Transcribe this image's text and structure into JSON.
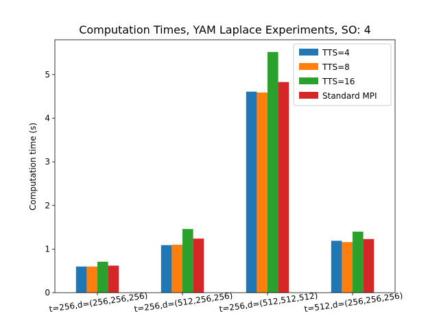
{
  "chart_data": {
    "type": "bar",
    "title": "Computation Times, YAM Laplace Experiments, SO: 4",
    "xlabel": "",
    "ylabel": "Computation time (s)",
    "ylim": [
      0,
      5.8
    ],
    "yticks": [
      0,
      1,
      2,
      3,
      4,
      5
    ],
    "grid": false,
    "legend_position": "top-right",
    "categories": [
      "t=256,d=(256,256,256)",
      "t=256,d=(512,256,256)",
      "t=256,d=(512,512,512)",
      "t=512,d=(256,256,256)"
    ],
    "series": [
      {
        "name": "TTS=4",
        "color": "#1f77b4",
        "values": [
          0.6,
          1.09,
          4.61,
          1.19
        ]
      },
      {
        "name": "TTS=8",
        "color": "#ff7f0e",
        "values": [
          0.6,
          1.1,
          4.59,
          1.16
        ]
      },
      {
        "name": "TTS=16",
        "color": "#2ca02c",
        "values": [
          0.71,
          1.46,
          5.52,
          1.4
        ]
      },
      {
        "name": "Standard MPI",
        "color": "#d62728",
        "values": [
          0.62,
          1.24,
          4.83,
          1.23
        ]
      }
    ]
  }
}
